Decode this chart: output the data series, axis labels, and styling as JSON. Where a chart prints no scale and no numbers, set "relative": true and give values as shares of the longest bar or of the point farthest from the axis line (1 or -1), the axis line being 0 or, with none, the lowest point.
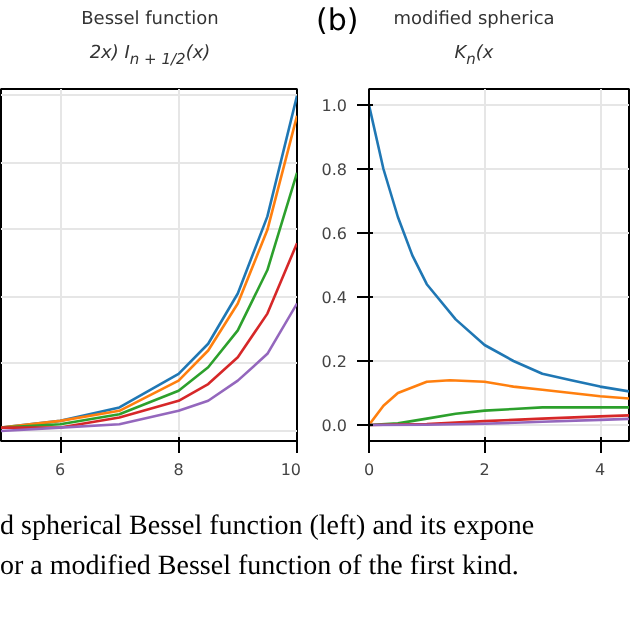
{
  "chart_data": [
    {
      "type": "line",
      "title": "Bessel function",
      "subtitle": "2x) I$_{n + 1/2}$(x)",
      "relative": true,
      "x": [
        5,
        6,
        7,
        8,
        8.5,
        9,
        9.5,
        10
      ],
      "xlim": [
        5,
        10
      ],
      "xticks": [
        6,
        8,
        10
      ],
      "grid": true,
      "series": [
        {
          "color": "#1f77b4",
          "values": [
            0.01,
            0.03,
            0.07,
            0.17,
            0.26,
            0.41,
            0.64,
            1.0
          ]
        },
        {
          "color": "#ff7f0e",
          "values": [
            0.01,
            0.03,
            0.06,
            0.15,
            0.24,
            0.38,
            0.6,
            0.94
          ]
        },
        {
          "color": "#2ca02c",
          "values": [
            0.01,
            0.02,
            0.05,
            0.12,
            0.19,
            0.3,
            0.48,
            0.77
          ]
        },
        {
          "color": "#d62728",
          "values": [
            0.01,
            0.01,
            0.04,
            0.09,
            0.14,
            0.22,
            0.35,
            0.56
          ]
        },
        {
          "color": "#9467bd",
          "values": [
            0.0,
            0.01,
            0.02,
            0.06,
            0.09,
            0.15,
            0.23,
            0.38
          ]
        }
      ],
      "annotations": [
        "d spherical Bessel function (left) and its expone",
        "or a modified Bessel function of the first kind."
      ]
    },
    {
      "type": "line",
      "title": "modified spherica",
      "subtitle": "K$_{n}$(x",
      "xlim": [
        0,
        4.5
      ],
      "xticks": [
        0,
        2,
        4
      ],
      "ylim": [
        -0.05,
        1.05
      ],
      "yticks": [
        {
          "value": 0,
          "label": "0.0"
        },
        0.2,
        0.4,
        0.6,
        0.8,
        {
          "value": 1,
          "label": "1.0"
        }
      ],
      "grid": true,
      "series": [
        {
          "color": "#1f77b4",
          "x": [
            0,
            0.25,
            0.5,
            0.75,
            1,
            1.5,
            2,
            2.5,
            3,
            3.5,
            4,
            4.5
          ],
          "values": [
            1.0,
            0.8,
            0.65,
            0.53,
            0.44,
            0.33,
            0.25,
            0.2,
            0.16,
            0.14,
            0.12,
            0.105
          ]
        },
        {
          "color": "#ff7f0e",
          "x": [
            0,
            0.25,
            0.5,
            1,
            1.4,
            2,
            2.5,
            3,
            3.5,
            4,
            4.5
          ],
          "values": [
            0.0,
            0.06,
            0.1,
            0.135,
            0.14,
            0.135,
            0.12,
            0.11,
            0.1,
            0.09,
            0.083
          ]
        },
        {
          "color": "#2ca02c",
          "x": [
            0,
            0.5,
            1,
            1.5,
            2,
            2.5,
            3,
            3.5,
            4,
            4.5
          ],
          "values": [
            0.0,
            0.005,
            0.02,
            0.035,
            0.045,
            0.05,
            0.055,
            0.055,
            0.055,
            0.055
          ]
        },
        {
          "color": "#d62728",
          "x": [
            0,
            1,
            2,
            3,
            4,
            4.5
          ],
          "values": [
            0.0,
            0.003,
            0.012,
            0.02,
            0.027,
            0.03
          ]
        },
        {
          "color": "#9467bd",
          "x": [
            0,
            1,
            2,
            3,
            4,
            4.5
          ],
          "values": [
            0.0,
            0.001,
            0.004,
            0.01,
            0.016,
            0.019
          ]
        }
      ],
      "annotations": [
        "(b)"
      ]
    }
  ]
}
